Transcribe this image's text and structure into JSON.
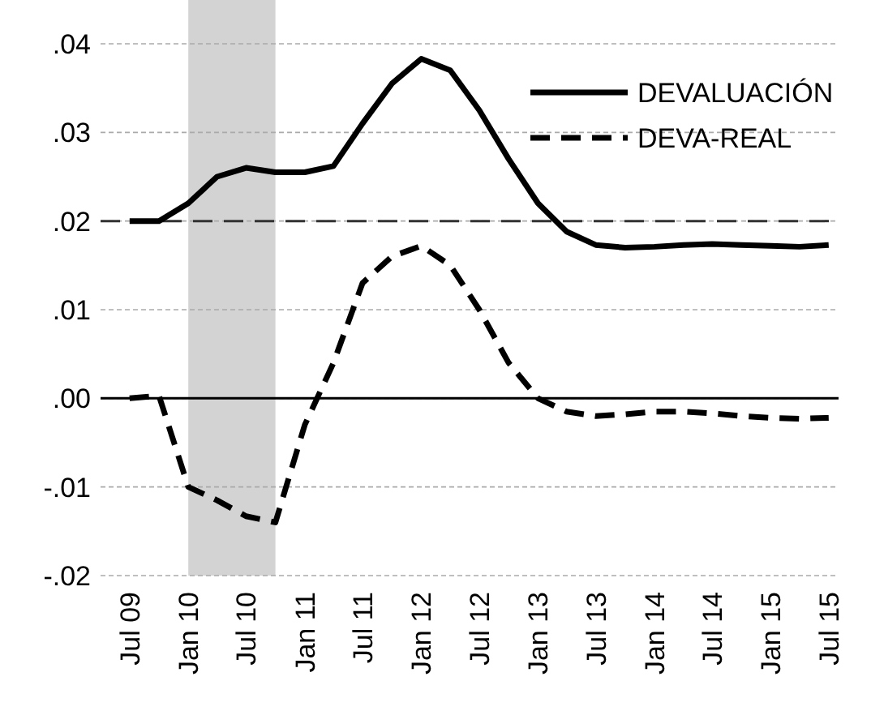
{
  "chart_data": {
    "type": "line",
    "x": [
      "2009-07",
      "2009-10",
      "2010-01",
      "2010-04",
      "2010-07",
      "2010-10",
      "2011-01",
      "2011-04",
      "2011-07",
      "2011-10",
      "2012-01",
      "2012-04",
      "2012-07",
      "2012-10",
      "2013-01",
      "2013-04",
      "2013-07",
      "2013-10",
      "2014-01",
      "2014-04",
      "2014-07",
      "2014-10",
      "2015-01",
      "2015-04",
      "2015-07"
    ],
    "series": [
      {
        "name": "DEVALUACIÓN",
        "color": "#000000",
        "line_style": "solid",
        "values": [
          0.02,
          0.02,
          0.022,
          0.025,
          0.026,
          0.0255,
          0.0255,
          0.0262,
          0.031,
          0.0355,
          0.0383,
          0.037,
          0.0325,
          0.027,
          0.022,
          0.0188,
          0.0173,
          0.017,
          0.0171,
          0.0173,
          0.0174,
          0.0173,
          0.0172,
          0.0171,
          0.0173
        ]
      },
      {
        "name": "DEVA-REAL",
        "color": "#000000",
        "line_style": "dashed",
        "values": [
          0.0,
          0.0003,
          -0.01,
          -0.0115,
          -0.0133,
          -0.014,
          -0.003,
          0.004,
          0.013,
          0.016,
          0.0172,
          0.015,
          0.01,
          0.004,
          0.0,
          -0.0015,
          -0.002,
          -0.0018,
          -0.0015,
          -0.0015,
          -0.0017,
          -0.002,
          -0.0022,
          -0.0023,
          -0.0022
        ]
      }
    ],
    "xlim": [
      "2009-04",
      "2015-08"
    ],
    "xticks": [
      {
        "value": "2009-07",
        "label": "Jul 09"
      },
      {
        "value": "2010-01",
        "label": "Jan 10"
      },
      {
        "value": "2010-07",
        "label": "Jul 10"
      },
      {
        "value": "2011-01",
        "label": "Jan 11"
      },
      {
        "value": "2011-07",
        "label": "Jul 11"
      },
      {
        "value": "2012-01",
        "label": "Jan 12"
      },
      {
        "value": "2012-07",
        "label": "Jul 12"
      },
      {
        "value": "2013-01",
        "label": "Jan 13"
      },
      {
        "value": "2013-07",
        "label": "Jul 13"
      },
      {
        "value": "2014-01",
        "label": "Jan 14"
      },
      {
        "value": "2014-07",
        "label": "Jul 14"
      },
      {
        "value": "2015-01",
        "label": "Jan 15"
      },
      {
        "value": "2015-07",
        "label": "Jul 15"
      }
    ],
    "ylim": [
      -0.02,
      0.04
    ],
    "yticks": [
      {
        "value": -0.02,
        "label": "-.02"
      },
      {
        "value": -0.01,
        "label": "-.01"
      },
      {
        "value": 0,
        "label": ".00"
      },
      {
        "value": 0.01,
        "label": ".01"
      },
      {
        "value": 0.02,
        "label": ".02"
      },
      {
        "value": 0.03,
        "label": ".03"
      },
      {
        "value": 0.04,
        "label": ".04"
      }
    ],
    "grid": "y",
    "legend": "top right",
    "ref_lines": [
      {
        "axis": "y",
        "value": 0,
        "color": "#000000",
        "line_style": "solid"
      },
      {
        "axis": "y",
        "value": 0.02,
        "color": "#333333",
        "line_style": "dashed"
      }
    ],
    "bands": [
      {
        "axis": "x",
        "from": "2010-01",
        "to": "2010-10",
        "color": "#d3d3d3"
      }
    ]
  }
}
